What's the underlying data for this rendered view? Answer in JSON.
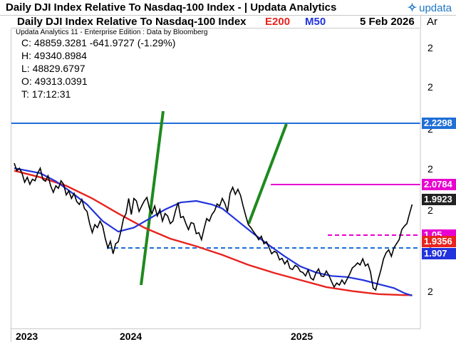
{
  "window": {
    "title": "Daily DJI Index Relative To Nasdaq-100 Index - | Updata Analytics",
    "brand": "updata"
  },
  "header": {
    "chart_title": "Daily DJI Index Relative To Nasdaq-100 Index",
    "ma_long_label": "E200",
    "ma_short_label": "M50",
    "date": "5 Feb 2026",
    "right_label": "Ar"
  },
  "info": {
    "credit": "Updata Analytics 11 - Enterprise Edition : Data by Bloomberg",
    "close": "C: 48859.3281  -641.9727 (-1.29%)",
    "high": "H: 49340.8984",
    "low": "L: 48829.6797",
    "open": "O: 49313.0391",
    "time": "T: 17:12:31"
  },
  "colors": {
    "price_line": "#000000",
    "ema200": "#e8231e",
    "sma50": "#2233dd",
    "upper_level": "#1f6fd6",
    "lower_level": "#1f6fd6",
    "magenta_level": "#e800d0",
    "trendlines": "#1e8a1e"
  },
  "chart_data": {
    "type": "line",
    "x_axis_labels": [
      "2023",
      "2024",
      "2025"
    ],
    "y_tick_labels": [
      "2",
      "2",
      "2",
      "2",
      "2",
      "2",
      "2"
    ],
    "series": [
      {
        "name": "E200",
        "description": "200-day exponential moving average"
      },
      {
        "name": "M50",
        "description": "50-day simple moving average"
      }
    ],
    "levels": [
      {
        "label": "2.2298",
        "color": "#1f6fd6",
        "style": "solid"
      },
      {
        "label": "2.0784",
        "color": "#e800d0",
        "style": "solid"
      },
      {
        "label": "1.05",
        "color": "#e800d0",
        "style": "dashed"
      },
      {
        "label": "1.907",
        "color": "#1f6fd6",
        "style": "dashed"
      }
    ],
    "price_tags": [
      {
        "label": "1.9923",
        "color": "#222222"
      },
      {
        "label": "1.05",
        "color": "#e800d0"
      },
      {
        "label": "1.9356",
        "color": "#e8231e"
      },
      {
        "label": "1.907",
        "color": "#2233dd"
      },
      {
        "label": "2.2298",
        "color": "#1f6fd6"
      },
      {
        "label": "2.0784",
        "color": "#e800d0"
      }
    ],
    "price": [
      [
        0.0,
        140
      ],
      [
        0.5,
        155
      ],
      [
        1.0,
        150
      ],
      [
        1.5,
        160
      ],
      [
        2.0,
        178
      ],
      [
        2.5,
        168
      ],
      [
        3.0,
        182
      ],
      [
        3.5,
        172
      ],
      [
        4.0,
        175
      ],
      [
        4.5,
        160
      ],
      [
        5.0,
        150
      ],
      [
        5.5,
        172
      ],
      [
        6.0,
        176
      ],
      [
        6.5,
        165
      ],
      [
        7.0,
        185
      ],
      [
        7.5,
        198
      ],
      [
        8.0,
        185
      ],
      [
        8.5,
        190
      ],
      [
        9.0,
        175
      ],
      [
        9.5,
        182
      ],
      [
        10.0,
        203
      ],
      [
        10.5,
        195
      ],
      [
        11.0,
        210
      ],
      [
        11.5,
        200
      ],
      [
        12.0,
        216
      ],
      [
        12.5,
        222
      ],
      [
        13.0,
        212
      ],
      [
        13.5,
        230
      ],
      [
        14.0,
        236
      ],
      [
        14.5,
        260
      ],
      [
        15.0,
        278
      ],
      [
        15.5,
        262
      ],
      [
        16.0,
        268
      ],
      [
        16.5,
        255
      ],
      [
        17.0,
        265
      ],
      [
        17.5,
        290
      ],
      [
        18.0,
        308
      ],
      [
        18.5,
        295
      ],
      [
        19.0,
        320
      ],
      [
        19.5,
        300
      ],
      [
        20.0,
        296
      ],
      [
        20.5,
        275
      ],
      [
        21.0,
        250
      ],
      [
        21.5,
        240
      ],
      [
        22.0,
        210
      ],
      [
        22.5,
        242
      ],
      [
        23.0,
        210
      ],
      [
        23.5,
        215
      ],
      [
        24.0,
        236
      ],
      [
        24.5,
        225
      ],
      [
        25.0,
        215
      ],
      [
        25.5,
        208
      ],
      [
        26.0,
        230
      ],
      [
        26.5,
        240
      ],
      [
        27.0,
        225
      ],
      [
        27.5,
        245
      ],
      [
        28.0,
        232
      ],
      [
        28.5,
        255
      ],
      [
        29.0,
        240
      ],
      [
        29.5,
        245
      ],
      [
        30.0,
        260
      ],
      [
        30.5,
        255
      ],
      [
        31.0,
        235
      ],
      [
        31.5,
        218
      ],
      [
        32.0,
        248
      ],
      [
        32.5,
        246
      ],
      [
        33.0,
        260
      ],
      [
        33.5,
        272
      ],
      [
        34.0,
        258
      ],
      [
        34.5,
        260
      ],
      [
        35.0,
        280
      ],
      [
        35.5,
        278
      ],
      [
        36.0,
        292
      ],
      [
        36.5,
        270
      ],
      [
        37.0,
        250
      ],
      [
        37.5,
        255
      ],
      [
        38.0,
        242
      ],
      [
        38.5,
        235
      ],
      [
        39.0,
        221
      ],
      [
        39.5,
        225
      ],
      [
        40.0,
        210
      ],
      [
        40.5,
        220
      ],
      [
        41.0,
        236
      ],
      [
        41.5,
        200
      ],
      [
        42.0,
        188
      ],
      [
        42.5,
        202
      ],
      [
        43.0,
        192
      ],
      [
        43.5,
        204
      ],
      [
        44.0,
        225
      ],
      [
        44.5,
        244
      ],
      [
        45.0,
        262
      ],
      [
        45.5,
        268
      ],
      [
        46.0,
        276
      ],
      [
        46.5,
        283
      ],
      [
        47.0,
        292
      ],
      [
        47.5,
        285
      ],
      [
        48.0,
        300
      ],
      [
        48.5,
        296
      ],
      [
        49.0,
        308
      ],
      [
        49.5,
        320
      ],
      [
        50.0,
        315
      ],
      [
        50.5,
        318
      ],
      [
        51.0,
        332
      ],
      [
        51.5,
        329
      ],
      [
        52.0,
        340
      ],
      [
        52.5,
        333
      ],
      [
        53.0,
        349
      ],
      [
        53.5,
        351
      ],
      [
        54.0,
        343
      ],
      [
        54.5,
        346
      ],
      [
        55.0,
        355
      ],
      [
        55.5,
        357
      ],
      [
        56.0,
        364
      ],
      [
        56.5,
        352
      ],
      [
        57.0,
        368
      ],
      [
        57.5,
        372
      ],
      [
        58.0,
        358
      ],
      [
        58.5,
        350
      ],
      [
        59.0,
        364
      ],
      [
        59.5,
        365
      ],
      [
        60.0,
        354
      ],
      [
        60.5,
        363
      ],
      [
        61.0,
        375
      ],
      [
        61.5,
        386
      ],
      [
        62.0,
        378
      ],
      [
        62.5,
        382
      ],
      [
        63.0,
        372
      ],
      [
        63.5,
        380
      ],
      [
        64.0,
        370
      ],
      [
        64.5,
        360
      ],
      [
        65.0,
        348
      ],
      [
        65.5,
        344
      ],
      [
        66.0,
        338
      ],
      [
        66.5,
        342
      ],
      [
        67.0,
        330
      ],
      [
        67.5,
        344
      ],
      [
        68.0,
        340
      ],
      [
        68.5,
        356
      ],
      [
        69.0,
        388
      ],
      [
        69.5,
        392
      ],
      [
        70.0,
        370
      ],
      [
        70.5,
        352
      ],
      [
        71.0,
        330
      ],
      [
        71.5,
        318
      ],
      [
        72.0,
        312
      ],
      [
        72.5,
        325
      ],
      [
        73.0,
        308
      ],
      [
        73.5,
        300
      ],
      [
        74.0,
        292
      ],
      [
        74.5,
        272
      ],
      [
        75.0,
        265
      ],
      [
        75.5,
        260
      ],
      [
        76.0,
        240
      ],
      [
        76.5,
        222
      ]
    ],
    "ema200": [
      [
        0,
        155
      ],
      [
        5,
        168
      ],
      [
        10,
        185
      ],
      [
        15,
        210
      ],
      [
        20,
        240
      ],
      [
        25,
        268
      ],
      [
        30,
        290
      ],
      [
        35,
        305
      ],
      [
        40,
        322
      ],
      [
        45,
        342
      ],
      [
        50,
        358
      ],
      [
        55,
        372
      ],
      [
        60,
        386
      ],
      [
        65,
        394
      ],
      [
        70,
        400
      ],
      [
        75,
        402
      ],
      [
        76.5,
        402
      ]
    ],
    "sma50": [
      [
        0,
        150
      ],
      [
        5,
        160
      ],
      [
        8,
        176
      ],
      [
        11,
        198
      ],
      [
        14,
        222
      ],
      [
        17,
        255
      ],
      [
        20,
        276
      ],
      [
        23,
        268
      ],
      [
        26,
        250
      ],
      [
        29,
        232
      ],
      [
        32,
        218
      ],
      [
        35,
        215
      ],
      [
        38,
        222
      ],
      [
        40,
        230
      ],
      [
        43,
        255
      ],
      [
        46,
        280
      ],
      [
        49,
        303
      ],
      [
        52,
        325
      ],
      [
        55,
        345
      ],
      [
        58,
        357
      ],
      [
        61,
        364
      ],
      [
        64,
        366
      ],
      [
        67,
        372
      ],
      [
        70,
        380
      ],
      [
        73,
        388
      ],
      [
        75,
        398
      ],
      [
        76.5,
        403
      ]
    ]
  }
}
